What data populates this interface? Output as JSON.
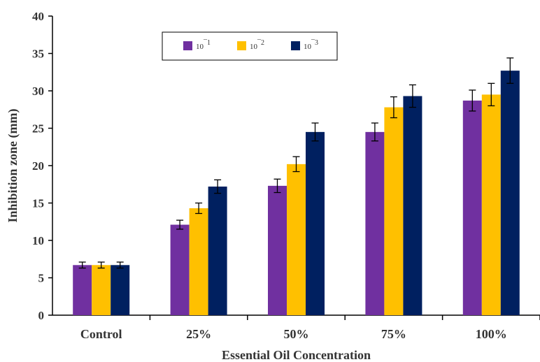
{
  "chart_data": {
    "type": "bar",
    "title": "",
    "xlabel": "Essential Oil Concentration",
    "ylabel": "Inhibition zone (mm)",
    "ylim": [
      0,
      40
    ],
    "yticks": [
      0,
      5,
      10,
      15,
      20,
      25,
      30,
      35,
      40
    ],
    "grid": false,
    "legend_position": "top-center",
    "categories": [
      "Control",
      "25%",
      "50%",
      "75%",
      "100%"
    ],
    "series": [
      {
        "name": "10⁻¹",
        "base": "10",
        "exponent": "¯1",
        "color": "#7030A0",
        "values": [
          6.7,
          12.1,
          17.3,
          24.5,
          28.7
        ],
        "errors": [
          0.4,
          0.6,
          0.9,
          1.2,
          1.4
        ]
      },
      {
        "name": "10⁻²",
        "base": "10",
        "exponent": "¯2",
        "color": "#FFC000",
        "values": [
          6.7,
          14.3,
          20.2,
          27.8,
          29.5
        ],
        "errors": [
          0.4,
          0.7,
          1.0,
          1.4,
          1.5
        ]
      },
      {
        "name": "10⁻³",
        "base": "10",
        "exponent": "¯3",
        "color": "#002060",
        "values": [
          6.7,
          17.2,
          24.5,
          29.3,
          32.7
        ],
        "errors": [
          0.4,
          0.9,
          1.2,
          1.5,
          1.7
        ]
      }
    ]
  }
}
